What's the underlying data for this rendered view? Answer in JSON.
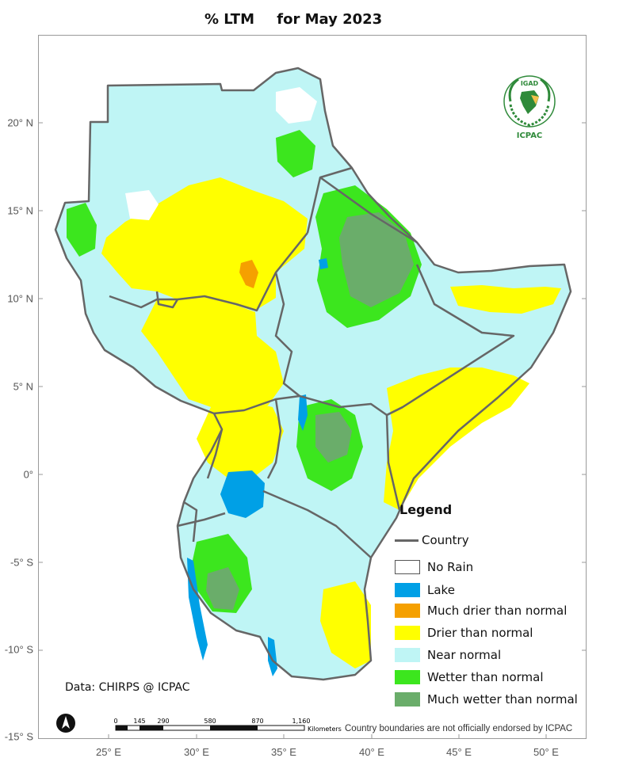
{
  "title": {
    "metric": "% LTM",
    "period": "for  May 2023"
  },
  "axes": {
    "latitude_labels": [
      "20° N",
      "15° N",
      "10° N",
      "5° N",
      "0°",
      "-5° S",
      "-10° S",
      "-15° S"
    ],
    "longitude_labels": [
      "25° E",
      "30° E",
      "35° E",
      "40° E",
      "45° E",
      "50° E"
    ]
  },
  "legend": {
    "title": "Legend",
    "items": [
      {
        "label": "Country",
        "type": "line",
        "color": "#666666"
      },
      {
        "label": "No Rain",
        "type": "fill",
        "color": "#ffffff"
      },
      {
        "label": "Lake",
        "type": "fill",
        "color": "#00a0e6"
      },
      {
        "label": "Much drier than normal",
        "type": "fill",
        "color": "#f5a000"
      },
      {
        "label": "Drier than normal",
        "type": "fill",
        "color": "#ffff00"
      },
      {
        "label": "Near normal",
        "type": "fill",
        "color": "#bff5f5"
      },
      {
        "label": "Wetter than normal",
        "type": "fill",
        "color": "#3ce61e"
      },
      {
        "label": "Much wetter than normal",
        "type": "fill",
        "color": "#6aad6a"
      }
    ]
  },
  "source": "Data: CHIRPS @ ICPAC",
  "scale_bar": {
    "ticks": [
      "0",
      "145",
      "290",
      "580",
      "870",
      "1,160"
    ],
    "unit": "Kilometers"
  },
  "disclaimer": "Country boundaries are not officially endorsed by ICPAC",
  "logo": {
    "top_text": "IGAD",
    "bottom_text": "ICPAC",
    "icon": "igad-emblem-icon"
  },
  "north_arrow": {
    "icon": "north-arrow-icon"
  },
  "colors": {
    "border": "#666666",
    "frame": "#9a9a9a",
    "no_rain": "#ffffff",
    "lake": "#00a0e6",
    "much_drier": "#f5a000",
    "drier": "#ffff00",
    "near_normal": "#bff5f5",
    "wetter": "#3ce61e",
    "much_wetter": "#6aad6a"
  }
}
